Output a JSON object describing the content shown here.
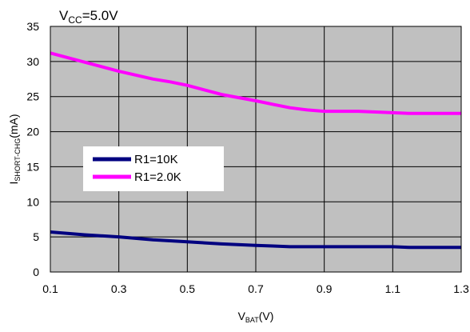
{
  "chart_data": {
    "type": "line",
    "title": {
      "main": "V",
      "sub": "CC",
      "suffix": "=5.0V"
    },
    "xlabel": {
      "main": "V",
      "sub": "BAT",
      "suffix": "(V)"
    },
    "ylabel": {
      "main": "I",
      "sub": "SHORT-CHG",
      "suffix": "(mA)"
    },
    "xlim": [
      0.1,
      1.3
    ],
    "ylim": [
      0,
      35
    ],
    "x_ticks": [
      "0.1",
      "0.3",
      "0.5",
      "0.7",
      "0.9",
      "1.1",
      "1.3"
    ],
    "y_ticks": [
      "0",
      "5",
      "10",
      "15",
      "20",
      "25",
      "30",
      "35"
    ],
    "grid": true,
    "plot_background": "#c0c0c0",
    "legend_position": "center-left",
    "series": [
      {
        "name": "R1=10K",
        "color": "#000080",
        "x": [
          0.1,
          0.2,
          0.3,
          0.4,
          0.5,
          0.6,
          0.7,
          0.75,
          0.8,
          0.9,
          1.0,
          1.1,
          1.15,
          1.2,
          1.3
        ],
        "y": [
          5.7,
          5.3,
          5.0,
          4.6,
          4.3,
          4.0,
          3.8,
          3.7,
          3.6,
          3.6,
          3.6,
          3.6,
          3.5,
          3.5,
          3.5
        ]
      },
      {
        "name": "R1=2.0K",
        "color": "#ff00ff",
        "x": [
          0.1,
          0.2,
          0.3,
          0.4,
          0.45,
          0.5,
          0.6,
          0.7,
          0.75,
          0.8,
          0.85,
          0.9,
          1.0,
          1.05,
          1.1,
          1.15,
          1.2,
          1.3
        ],
        "y": [
          31.2,
          29.9,
          28.6,
          27.5,
          27.1,
          26.6,
          25.3,
          24.4,
          23.9,
          23.4,
          23.1,
          22.9,
          22.9,
          22.8,
          22.7,
          22.6,
          22.6,
          22.6
        ]
      }
    ]
  }
}
